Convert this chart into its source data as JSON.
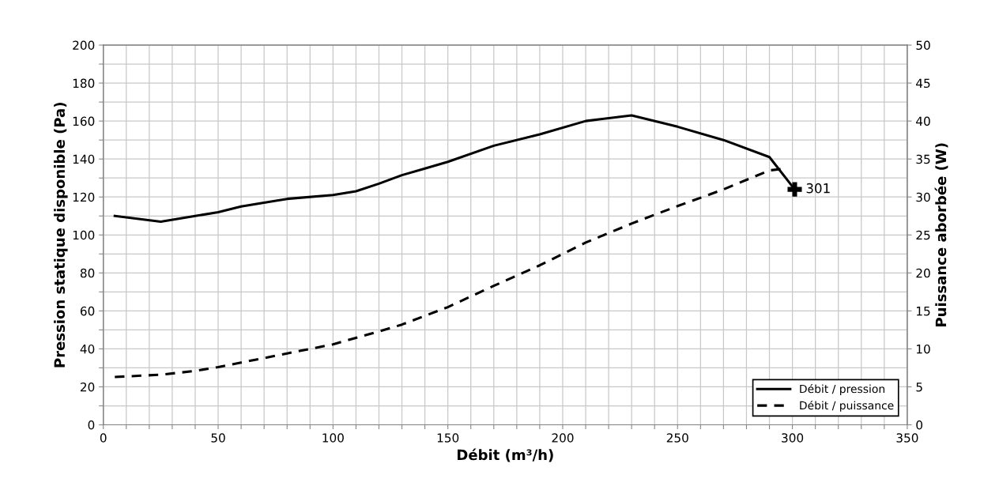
{
  "chart_data": {
    "type": "line",
    "xlabel": "Débit (m³/h)",
    "ylabel": "Pression statique disponible (Pa)",
    "y2label": "Puissance aborbée (W)",
    "xlim": [
      0,
      350
    ],
    "xticks": [
      0,
      {
        "value": 10,
        "label": null
      },
      {
        "value": 20,
        "label": null
      },
      {
        "value": 30,
        "label": null
      },
      {
        "value": 40,
        "label": null
      },
      50,
      {
        "value": 60,
        "label": null
      },
      {
        "value": 70,
        "label": null
      },
      {
        "value": 80,
        "label": null
      },
      {
        "value": 90,
        "label": null
      },
      100,
      {
        "value": 110,
        "label": null
      },
      {
        "value": 120,
        "label": null
      },
      {
        "value": 130,
        "label": null
      },
      {
        "value": 140,
        "label": null
      },
      150,
      {
        "value": 160,
        "label": null
      },
      {
        "value": 170,
        "label": null
      },
      {
        "value": 180,
        "label": null
      },
      {
        "value": 190,
        "label": null
      },
      200,
      {
        "value": 210,
        "label": null
      },
      {
        "value": 220,
        "label": null
      },
      {
        "value": 230,
        "label": null
      },
      {
        "value": 240,
        "label": null
      },
      250,
      {
        "value": 260,
        "label": null
      },
      {
        "value": 270,
        "label": null
      },
      {
        "value": 280,
        "label": null
      },
      {
        "value": 290,
        "label": null
      },
      300,
      {
        "value": 310,
        "label": null
      },
      {
        "value": 320,
        "label": null
      },
      {
        "value": 330,
        "label": null
      },
      {
        "value": 340,
        "label": null
      },
      350
    ],
    "ylim": [
      0,
      200
    ],
    "yticks": [
      0,
      {
        "value": 10,
        "label": null
      },
      20,
      {
        "value": 30,
        "label": null
      },
      40,
      {
        "value": 50,
        "label": null
      },
      60,
      {
        "value": 70,
        "label": null
      },
      80,
      {
        "value": 90,
        "label": null
      },
      100,
      {
        "value": 110,
        "label": null
      },
      120,
      {
        "value": 130,
        "label": null
      },
      140,
      {
        "value": 150,
        "label": null
      },
      160,
      {
        "value": 170,
        "label": null
      },
      180,
      {
        "value": 190,
        "label": null
      },
      200
    ],
    "y2lim": [
      0,
      50
    ],
    "y2ticks": [
      0,
      5,
      10,
      15,
      20,
      25,
      30,
      35,
      40,
      45,
      50
    ],
    "grid": true,
    "legend": "bottom right",
    "series": [
      {
        "name": "Débit / pression",
        "color": "#000000",
        "line_style": "solid",
        "marker": "none",
        "x": [
          5,
          25,
          40,
          50,
          60,
          80,
          100,
          110,
          120,
          130,
          140,
          150,
          170,
          190,
          210,
          230,
          250,
          270,
          290,
          301
        ],
        "values": [
          110,
          107,
          110,
          112,
          115,
          119,
          121,
          123,
          127,
          131.5,
          135,
          138.5,
          147,
          153,
          160,
          163,
          157,
          150,
          141,
          124
        ]
      },
      {
        "name": "Débit / puissance",
        "color": "#000000",
        "line_style": "dashed",
        "marker": "none",
        "axis": "y2",
        "x": [
          5,
          25,
          40,
          50,
          60,
          80,
          100,
          120,
          130,
          150,
          170,
          190,
          210,
          230,
          250,
          270,
          290,
          296
        ],
        "values": [
          6.3,
          6.6,
          7.1,
          7.6,
          8.2,
          9.4,
          10.6,
          12.3,
          13.2,
          15.5,
          18.3,
          21,
          24,
          26.5,
          28.8,
          31,
          33.5,
          33.7
        ]
      },
      {
        "type": "scatter",
        "color": "#000000",
        "marker": "cross",
        "x": [
          301
        ],
        "values": [
          124
        ]
      }
    ],
    "annotations": [
      {
        "text": "301",
        "x": 301,
        "y": 124
      }
    ]
  }
}
